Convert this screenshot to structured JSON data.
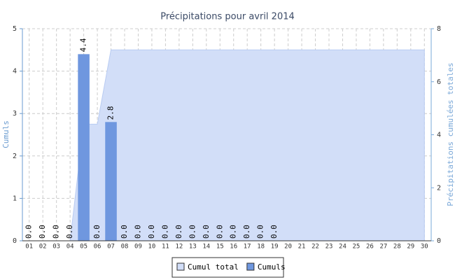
{
  "chart_data": {
    "type": "bar",
    "title": "Précipitations pour avril 2014",
    "y_label": "Cumuls",
    "y2_label": "Précipitations cumulées totales",
    "categories": [
      "01",
      "02",
      "03",
      "04",
      "05",
      "06",
      "07",
      "08",
      "09",
      "10",
      "11",
      "12",
      "13",
      "14",
      "15",
      "16",
      "17",
      "18",
      "19",
      "20",
      "21",
      "22",
      "23",
      "24",
      "25",
      "26",
      "27",
      "28",
      "29",
      "30"
    ],
    "series": [
      {
        "name": "Cumul total",
        "type": "area",
        "axis": "y2",
        "color": "#d2def8",
        "values": [
          0,
          0,
          0,
          0,
          4.4,
          4.4,
          7.2,
          7.2,
          7.2,
          7.2,
          7.2,
          7.2,
          7.2,
          7.2,
          7.2,
          7.2,
          7.2,
          7.2,
          7.2,
          7.2,
          7.2,
          7.2,
          7.2,
          7.2,
          7.2,
          7.2,
          7.2,
          7.2,
          7.2,
          7.2
        ]
      },
      {
        "name": "Cumuls",
        "type": "bar",
        "color": "#6f97df",
        "values": [
          0,
          0,
          0,
          0,
          4.4,
          0,
          2.8,
          0,
          0,
          0,
          0,
          0,
          0,
          0,
          0,
          0,
          0,
          0,
          0,
          null,
          null,
          null,
          null,
          null,
          null,
          null,
          null,
          null,
          null,
          null
        ],
        "value_labels": [
          "0.0",
          "0.0",
          "0.0",
          "0.0",
          "4.4",
          "0.0",
          "2.8",
          "0.0",
          "0.0",
          "0.0",
          "0.0",
          "0.0",
          "0.0",
          "0.0",
          "0.0",
          "0.0",
          "0.0",
          "0.0",
          "0.0",
          null,
          null,
          null,
          null,
          null,
          null,
          null,
          null,
          null,
          null,
          null
        ]
      }
    ],
    "ylim": [
      0,
      5
    ],
    "yticks": [
      0,
      1,
      2,
      3,
      4,
      5
    ],
    "y2lim": [
      0,
      8
    ],
    "y2ticks": [
      0,
      2,
      4,
      6,
      8
    ],
    "grid": true,
    "legend": "bottom"
  }
}
